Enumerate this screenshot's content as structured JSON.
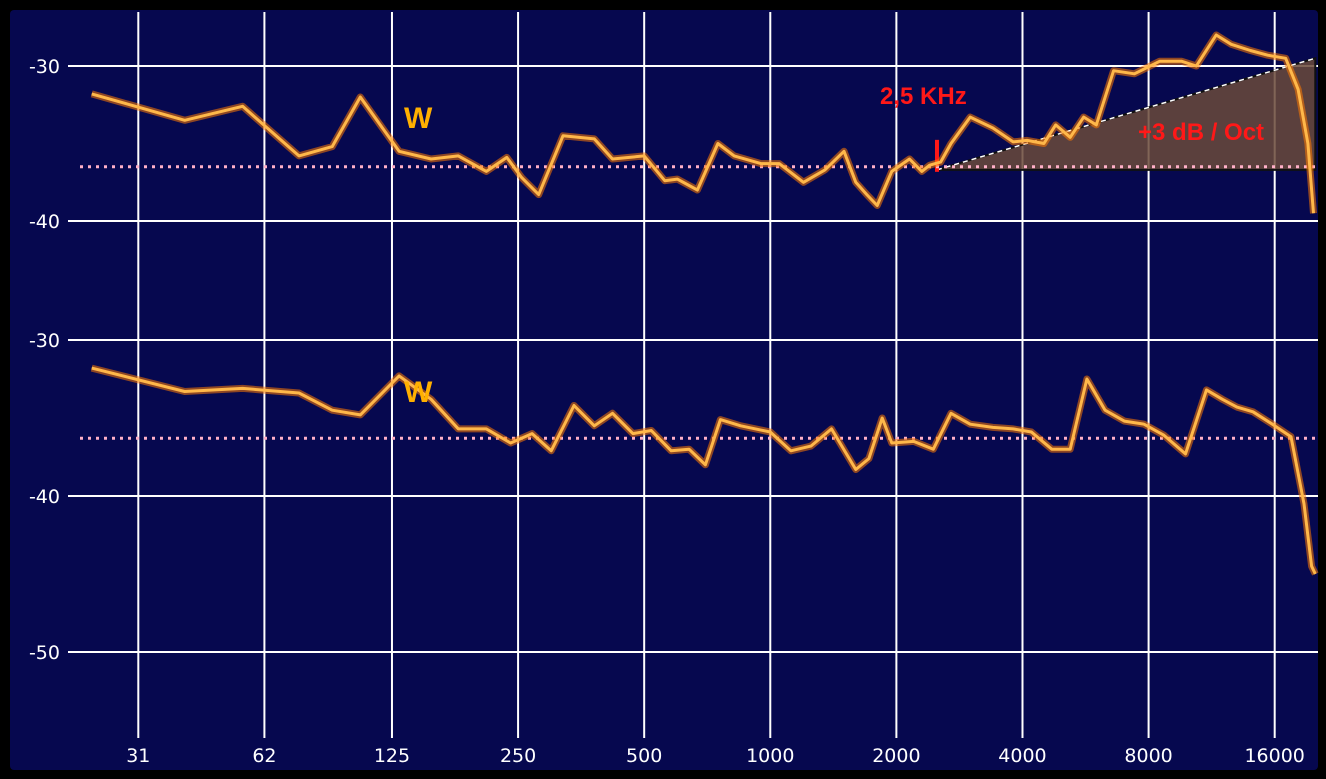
{
  "colors": {
    "background": "#06084f",
    "grid": "#ffffff",
    "curve": "#ffb84a",
    "curve_glow": "#ff7a00",
    "reference_line": "#ffb0c8",
    "label": "#ffb000",
    "annotation": "#ff1818",
    "slope_fill": "#6b4a3a"
  },
  "chart_data": [
    {
      "type": "line",
      "panel": "top",
      "x_scale": "log",
      "x_ticks": [
        "31",
        "62",
        "125",
        "250",
        "500",
        "1000",
        "2000",
        "4000",
        "8000",
        "16000"
      ],
      "y_ticks": [
        "-30",
        "-40"
      ],
      "ylim": [
        -43.5,
        -27
      ],
      "grid": true,
      "curve_label": "W",
      "reference_level": -36.5,
      "annotation_freq_label": "2,5 KHz",
      "annotation_slope_label": "+3 dB / Oct",
      "slope": {
        "x_start": 2500,
        "y_start": -36.7,
        "x_end": 20000,
        "y_end": -29.5
      },
      "series": [
        {
          "x": [
            24,
            40,
            55,
            75,
            90,
            105,
            130,
            155,
            180,
            210,
            235,
            255,
            280,
            320,
            380,
            420,
            500,
            560,
            600,
            670,
            750,
            820,
            950,
            1050,
            1200,
            1350,
            1500,
            1600,
            1700,
            1800,
            1950,
            2150,
            2300,
            2400,
            2550,
            2700,
            3000,
            3400,
            3800,
            4100,
            4500,
            4800,
            5200,
            5600,
            6000,
            6600,
            7400,
            8500,
            9600,
            10400,
            11600,
            12600,
            14000,
            15400,
            17000,
            18200,
            19200,
            19800
          ],
          "y": [
            -31.8,
            -33.5,
            -32.6,
            -35.8,
            -35.2,
            -32.0,
            -35.5,
            -36.0,
            -35.8,
            -36.8,
            -35.9,
            -37.2,
            -38.3,
            -34.5,
            -34.7,
            -36.0,
            -35.8,
            -37.4,
            -37.3,
            -38.0,
            -35.0,
            -35.8,
            -36.3,
            -36.3,
            -37.5,
            -36.7,
            -35.5,
            -37.5,
            -38.3,
            -39.0,
            -36.8,
            -36.0,
            -36.8,
            -36.4,
            -36.2,
            -35.0,
            -33.3,
            -34.0,
            -34.9,
            -34.8,
            -35.0,
            -33.8,
            -34.6,
            -33.3,
            -33.8,
            -30.3,
            -30.5,
            -29.7,
            -29.7,
            -30.0,
            -28.0,
            -28.6,
            -29.0,
            -29.3,
            -29.5,
            -31.5,
            -35.0,
            -39.5
          ]
        }
      ]
    },
    {
      "type": "line",
      "panel": "bottom",
      "x_scale": "log",
      "x_ticks": [
        "31",
        "62",
        "125",
        "250",
        "500",
        "1000",
        "2000",
        "4000",
        "8000",
        "16000"
      ],
      "y_ticks": [
        "-30",
        "-40",
        "-50"
      ],
      "ylim": [
        -53.5,
        -27
      ],
      "grid": true,
      "curve_label": "W",
      "reference_level": -36.3,
      "series": [
        {
          "x": [
            24,
            40,
            55,
            75,
            90,
            105,
            130,
            155,
            180,
            210,
            240,
            270,
            300,
            340,
            380,
            420,
            470,
            520,
            580,
            640,
            700,
            760,
            850,
            1000,
            1120,
            1250,
            1400,
            1600,
            1720,
            1850,
            1950,
            2200,
            2450,
            2700,
            3000,
            3400,
            3800,
            4200,
            4700,
            5200,
            5700,
            6300,
            7000,
            7800,
            8700,
            9800,
            11000,
            12000,
            13000,
            14200,
            15800,
            17500,
            18800,
            19600,
            20000
          ],
          "y": [
            -31.8,
            -33.3,
            -33.1,
            -33.4,
            -34.5,
            -34.8,
            -32.3,
            -33.8,
            -35.7,
            -35.7,
            -36.6,
            -36.0,
            -37.1,
            -34.2,
            -35.5,
            -34.7,
            -36.0,
            -35.8,
            -37.1,
            -37.0,
            -38.0,
            -35.1,
            -35.5,
            -35.9,
            -37.1,
            -36.8,
            -35.7,
            -38.3,
            -37.6,
            -35.0,
            -36.6,
            -36.5,
            -37.0,
            -34.7,
            -35.4,
            -35.6,
            -35.7,
            -35.9,
            -37.0,
            -37.0,
            -32.5,
            -34.5,
            -35.2,
            -35.4,
            -36.1,
            -37.3,
            -33.2,
            -33.8,
            -34.3,
            -34.6,
            -35.4,
            -36.2,
            -40.5,
            -44.5,
            -45.0
          ]
        }
      ]
    }
  ]
}
